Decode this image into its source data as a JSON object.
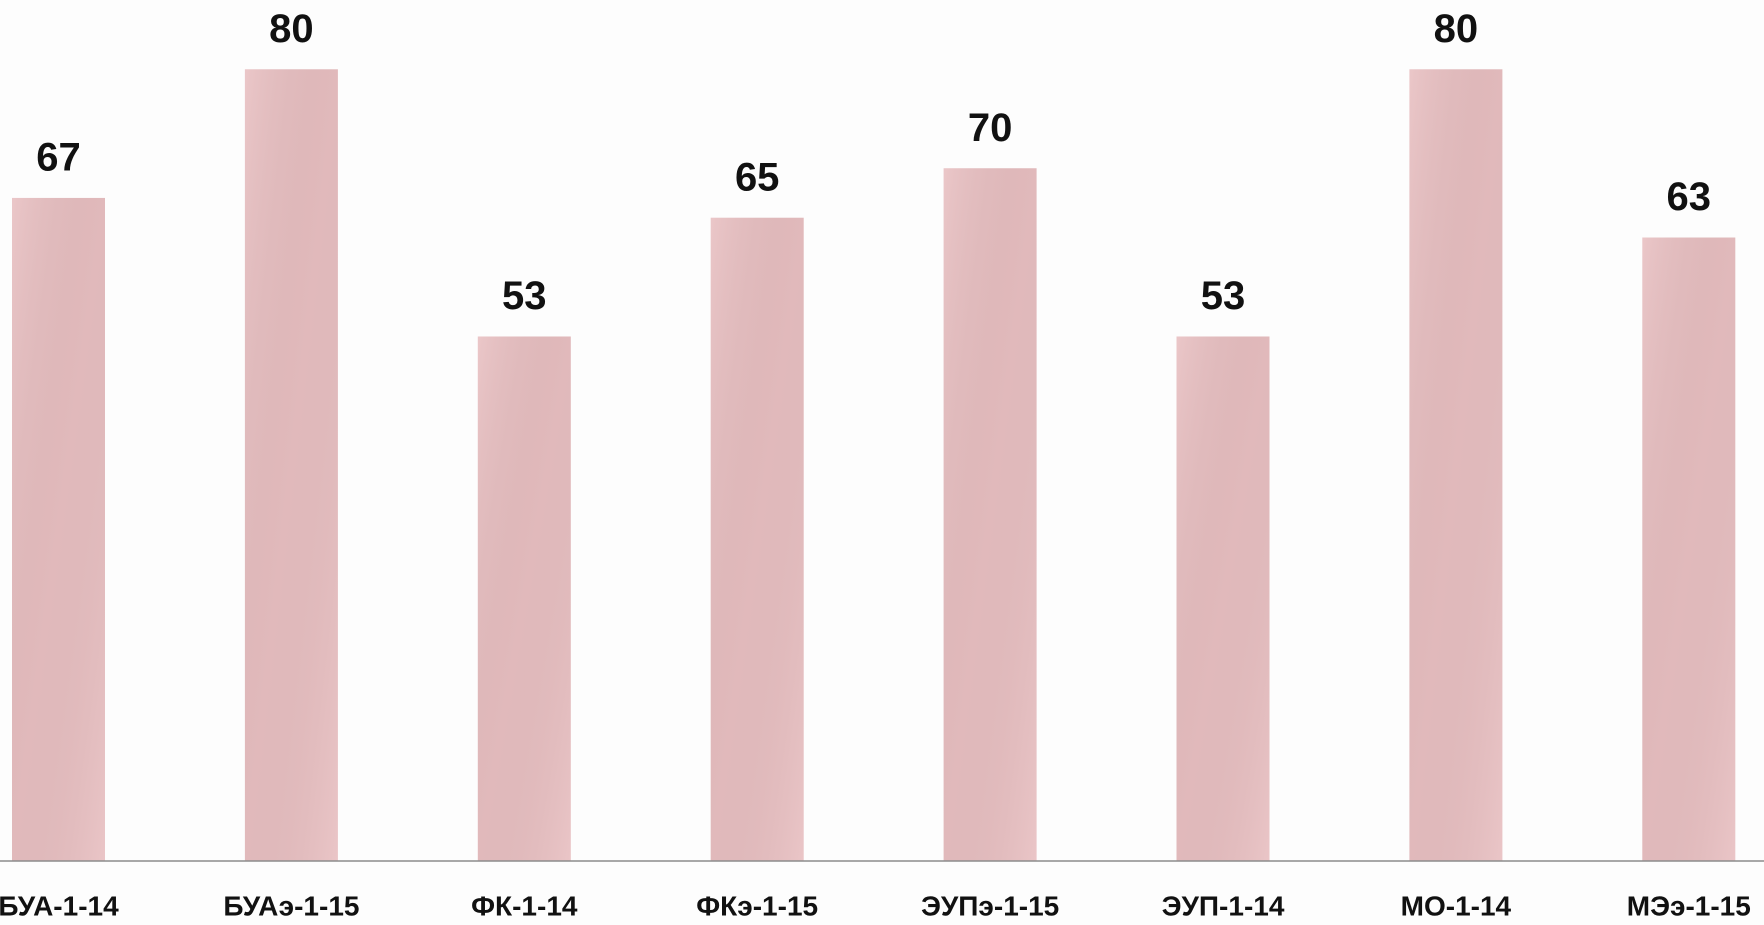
{
  "chart_data": {
    "type": "bar",
    "categories": [
      "БУА-1-14",
      "БУАэ-1-15",
      "ФК-1-14",
      "ФКэ-1-15",
      "ЭУПэ-1-15",
      "ЭУП-1-14",
      "МО-1-14",
      "МЭэ-1-15"
    ],
    "values": [
      67,
      80,
      53,
      65,
      70,
      53,
      80,
      63
    ],
    "color": "#e8bfc1",
    "ylim": [
      0,
      87
    ]
  }
}
